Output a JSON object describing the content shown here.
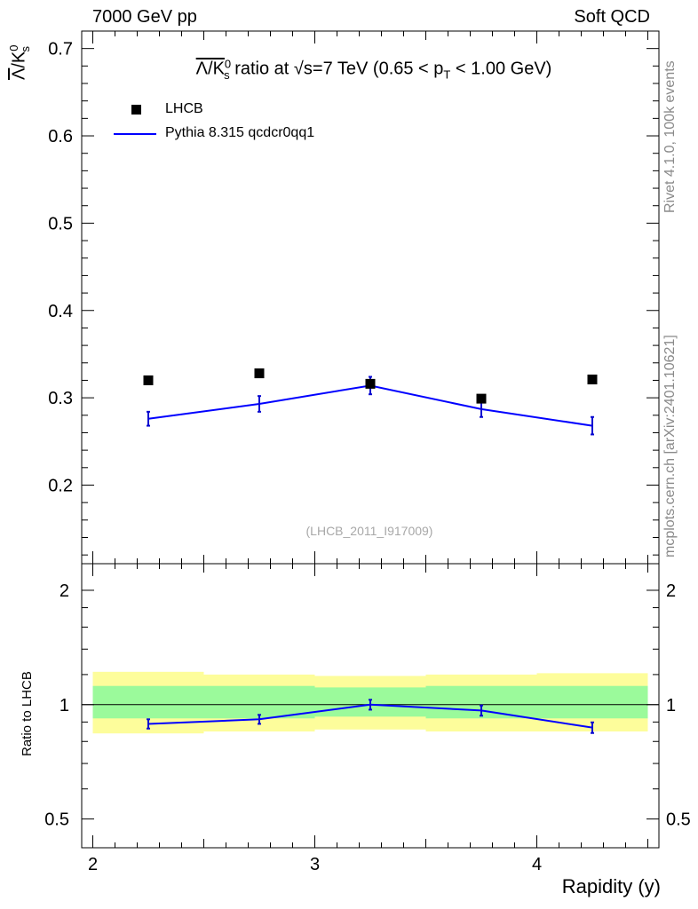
{
  "header": {
    "left": "7000 GeV pp",
    "right": "Soft QCD"
  },
  "side_labels": {
    "rivet": "Rivet 4.1.0,  100k events",
    "mcplots": "mcplots.cern.ch [arXiv:2401.10621]"
  },
  "watermark": "(LHCB_2011_I917009)",
  "title": {
    "ratio_label": "Λ/K",
    "k_sup": "0",
    "k_sub": "s",
    "middle": " ratio at √s=7 TeV (0.65 < p",
    "pt_sub": "T",
    "end": " < 1.00 GeV)"
  },
  "legend": {
    "data_label": "LHCB",
    "mc_label": "Pythia 8.315 qcdcr0qq1"
  },
  "colors": {
    "mc_line": "#0000ff",
    "mc_line_dark": "#0a0ad0",
    "band_inner": "#9bfa9b",
    "band_outer": "#fdfd9b",
    "data_marker": "#000000"
  },
  "chart_data": [
    {
      "type": "scatter",
      "panel": "main",
      "xlabel": "Rapidity (y)",
      "ylabel_main": "Λ",
      "ylabel_k": "K",
      "ylabel_sup": "0",
      "ylabel_sub": "s",
      "xlim": [
        1.95,
        4.55
      ],
      "ylim": [
        0.11,
        0.72
      ],
      "xticks": [
        2,
        3,
        4
      ],
      "yticks": [
        0.2,
        0.3,
        0.4,
        0.5,
        0.6,
        0.7
      ],
      "ytick_labels": [
        "0.2",
        "0.3",
        "0.4",
        "0.5",
        "0.6",
        "0.7"
      ],
      "series": [
        {
          "name": "LHCB",
          "kind": "markers",
          "x": [
            2.25,
            2.75,
            3.25,
            3.75,
            4.25
          ],
          "y": [
            0.32,
            0.328,
            0.316,
            0.299,
            0.321
          ]
        },
        {
          "name": "Pythia 8.315 qcdcr0qq1",
          "kind": "line",
          "x": [
            2.25,
            2.75,
            3.25,
            3.75,
            4.25
          ],
          "y": [
            0.276,
            0.293,
            0.314,
            0.287,
            0.268
          ],
          "err": [
            0.008,
            0.009,
            0.01,
            0.009,
            0.01
          ]
        }
      ]
    },
    {
      "type": "line",
      "panel": "ratio",
      "ylabel": "Ratio to LHCB",
      "xlim": [
        1.95,
        4.55
      ],
      "ylim": [
        0.42,
        2.35
      ],
      "yscale": "log",
      "xticks": [
        2,
        3,
        4
      ],
      "xtick_labels": [
        "2",
        "3",
        "4"
      ],
      "yticks": [
        0.5,
        1,
        2
      ],
      "ytick_labels": [
        "0.5",
        "1",
        "2"
      ],
      "bands": [
        {
          "x0": 2.0,
          "x1": 2.5,
          "inner": [
            0.92,
            1.12
          ],
          "outer": [
            0.84,
            1.22
          ]
        },
        {
          "x0": 2.5,
          "x1": 3.0,
          "inner": [
            0.92,
            1.12
          ],
          "outer": [
            0.85,
            1.2
          ]
        },
        {
          "x0": 3.0,
          "x1": 3.5,
          "inner": [
            0.93,
            1.11
          ],
          "outer": [
            0.86,
            1.19
          ]
        },
        {
          "x0": 3.5,
          "x1": 4.0,
          "inner": [
            0.92,
            1.12
          ],
          "outer": [
            0.85,
            1.2
          ]
        },
        {
          "x0": 4.0,
          "x1": 4.5,
          "inner": [
            0.92,
            1.12
          ],
          "outer": [
            0.85,
            1.21
          ]
        }
      ],
      "series": [
        {
          "name": "Pythia 8.315 qcdcr0qq1 / LHCB",
          "x": [
            2.25,
            2.75,
            3.25,
            3.75,
            4.25
          ],
          "y": [
            0.89,
            0.915,
            1.0,
            0.965,
            0.87
          ],
          "err": [
            0.025,
            0.025,
            0.03,
            0.03,
            0.028
          ]
        }
      ]
    }
  ]
}
